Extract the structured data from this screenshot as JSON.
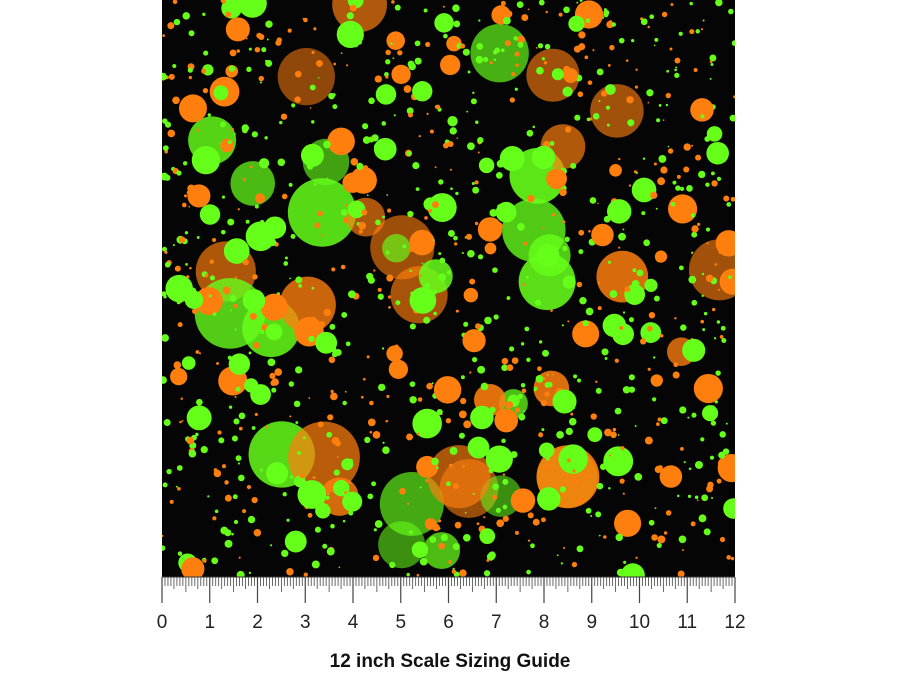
{
  "ruler": {
    "labels": [
      "0",
      "1",
      "2",
      "3",
      "4",
      "5",
      "6",
      "7",
      "8",
      "9",
      "10",
      "11",
      "12"
    ]
  },
  "caption": "12 inch Scale Sizing Guide"
}
